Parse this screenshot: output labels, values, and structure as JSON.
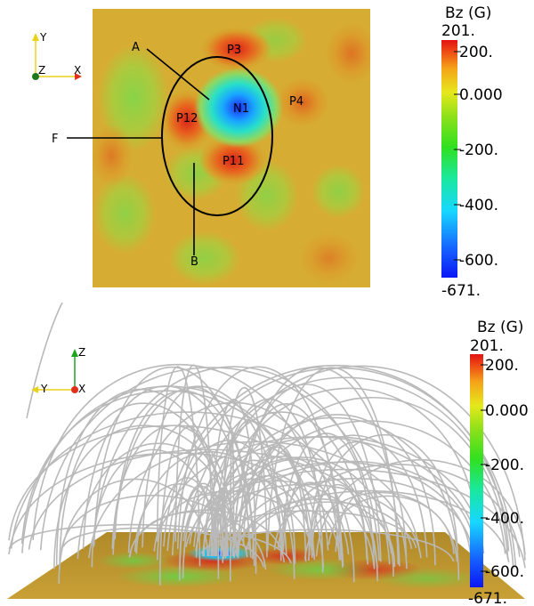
{
  "top_panel": {
    "axes": {
      "y": "Y",
      "z": "Z",
      "x": "X"
    },
    "labels": {
      "A": "A",
      "F": "F",
      "B": "B",
      "P3": "P3",
      "P4": "P4",
      "P11": "P11",
      "P12": "P12",
      "N1": "N1"
    },
    "colorbar": {
      "title": "Bz (G)",
      "max_label": "201.",
      "min_label": "-671.",
      "ticks": [
        "200.",
        "0.000",
        "-200.",
        "-400.",
        "-600."
      ]
    }
  },
  "bottom_panel": {
    "axes": {
      "z": "Z",
      "y": "Y",
      "x": "X"
    },
    "colorbar": {
      "title": "Bz (G)",
      "max_label": "201.",
      "min_label": "-671.",
      "ticks": [
        "200.",
        "0.000",
        "-200.",
        "-400.",
        "-600."
      ]
    }
  },
  "colors": {
    "background_field": "#c9ad3a",
    "negative_core": "#1a2cff",
    "positive_core": "#e0301a",
    "field_line": "#bcbcbc"
  }
}
